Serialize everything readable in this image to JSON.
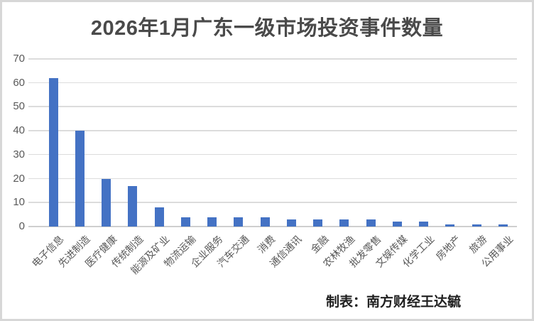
{
  "title": "2026年1月广东一级市场投资事件数量",
  "caption": "制表：南方财经王达毓",
  "colors": {
    "bar": "#4472C4",
    "gridline": "#DCDCDC",
    "axis_line": "#CFCFCF",
    "axis_text": "#595959",
    "title_text": "#4A4A4A",
    "caption_text": "#1F1F1F",
    "frame_border": "#D7D7D7",
    "background": "#FFFFFF"
  },
  "chart_data": {
    "type": "bar",
    "title": "2026年1月广东一级市场投资事件数量",
    "categories": [
      "电子信息",
      "先进制造",
      "医疗健康",
      "传统制造",
      "能源及矿业",
      "物流运输",
      "企业服务",
      "汽车交通",
      "消费",
      "通信通讯",
      "金融",
      "农林牧渔",
      "批发零售",
      "文娱传媒",
      "化学工业",
      "房地产",
      "旅游",
      "公用事业"
    ],
    "values": [
      62,
      40,
      20,
      17,
      8,
      4,
      4,
      4,
      4,
      3,
      3,
      3,
      3,
      2,
      2,
      1,
      1,
      1
    ],
    "xlabel": "",
    "ylabel": "",
    "ylim": [
      0,
      70
    ],
    "yticks": [
      0,
      10,
      20,
      30,
      40,
      50,
      60,
      70
    ],
    "grid": true,
    "legend": false,
    "bar_color": "#4472C4",
    "x_tick_rotation_deg": 45
  }
}
